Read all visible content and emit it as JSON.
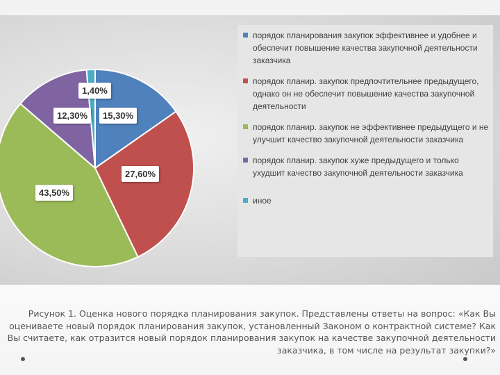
{
  "chart_data": {
    "type": "pie",
    "categories": [
      "порядок планирования закупок эффективнее и удобнее и обеспечит повышение качества закупочной деятельности заказчика",
      "порядок планир. закупок предпочтительнее предыдущего, однако он не обеспечит повышение качества закупочной деятельности",
      "порядок планир. закупок не эффективнее предыдущего и не улучшит качество закупочной деятельности заказчика",
      "порядок планир. закупок хуже предыдущего и только ухудшит качество закупочной деятельности заказчика",
      "иное"
    ],
    "values": [
      15.3,
      27.6,
      43.5,
      12.3,
      1.4
    ],
    "data_labels": [
      "15,30%",
      "27,60%",
      "43,50%",
      "12,30%",
      "1,40%"
    ],
    "colors": [
      "#4f81bd",
      "#c0504d",
      "#9bbb59",
      "#8064a2",
      "#4bacc6"
    ],
    "start_angle_deg": 0,
    "direction": "clockwise",
    "legend_position": "right"
  },
  "caption": "Рисунок 1. Оценка нового порядка планирования закупок. Представлены ответы на вопрос: «Как Вы оцениваете новый порядок планирования закупок, установленный Законом о контрактной системе? Как Вы считаете, как отразится новый порядок планирования закупок на качестве закупочной деятельности заказчика, в том числе на результат закупки?»"
}
